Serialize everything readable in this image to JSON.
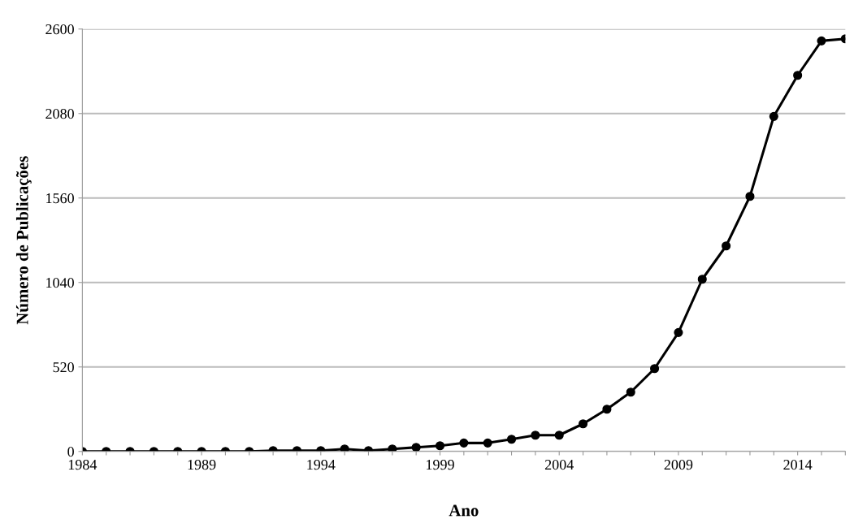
{
  "chart_data": {
    "type": "line",
    "xlabel": "Ano",
    "ylabel": "Número de Publicações",
    "x": [
      1984,
      1985,
      1986,
      1987,
      1988,
      1989,
      1990,
      1991,
      1992,
      1993,
      1994,
      1995,
      1996,
      1997,
      1998,
      1999,
      2000,
      2001,
      2002,
      2003,
      2004,
      2005,
      2006,
      2007,
      2008,
      2009,
      2010,
      2011,
      2012,
      2013,
      2014,
      2015,
      2016
    ],
    "series": [
      {
        "color": "#000000",
        "values": [
          0,
          0,
          0,
          0,
          0,
          0,
          0,
          0,
          5,
          5,
          5,
          15,
          5,
          15,
          25,
          35,
          52,
          52,
          75,
          100,
          100,
          170,
          260,
          365,
          510,
          732,
          1060,
          1265,
          1570,
          2062,
          2315,
          2527,
          2540
        ]
      }
    ],
    "xlim": [
      1984,
      2016
    ],
    "xticks": [
      1984,
      {
        "value": 1985,
        "label": null
      },
      {
        "value": 1986,
        "label": null
      },
      {
        "value": 1987,
        "label": null
      },
      {
        "value": 1988,
        "label": null
      },
      1989,
      {
        "value": 1990,
        "label": null
      },
      {
        "value": 1991,
        "label": null
      },
      {
        "value": 1992,
        "label": null
      },
      {
        "value": 1993,
        "label": null
      },
      1994,
      {
        "value": 1995,
        "label": null
      },
      {
        "value": 1996,
        "label": null
      },
      {
        "value": 1997,
        "label": null
      },
      {
        "value": 1998,
        "label": null
      },
      1999,
      {
        "value": 2000,
        "label": null
      },
      {
        "value": 2001,
        "label": null
      },
      {
        "value": 2002,
        "label": null
      },
      {
        "value": 2003,
        "label": null
      },
      2004,
      {
        "value": 2005,
        "label": null
      },
      {
        "value": 2006,
        "label": null
      },
      {
        "value": 2007,
        "label": null
      },
      {
        "value": 2008,
        "label": null
      },
      2009,
      {
        "value": 2010,
        "label": null
      },
      {
        "value": 2011,
        "label": null
      },
      {
        "value": 2012,
        "label": null
      },
      {
        "value": 2013,
        "label": null
      },
      2014,
      {
        "value": 2015,
        "label": null
      },
      {
        "value": 2016,
        "label": null
      }
    ],
    "ylim": [
      0,
      2600
    ],
    "yticks": [
      0,
      520,
      1040,
      1560,
      2080,
      2600
    ],
    "grid": "y",
    "marker": "circle",
    "line_style": "solid",
    "legend": false
  }
}
